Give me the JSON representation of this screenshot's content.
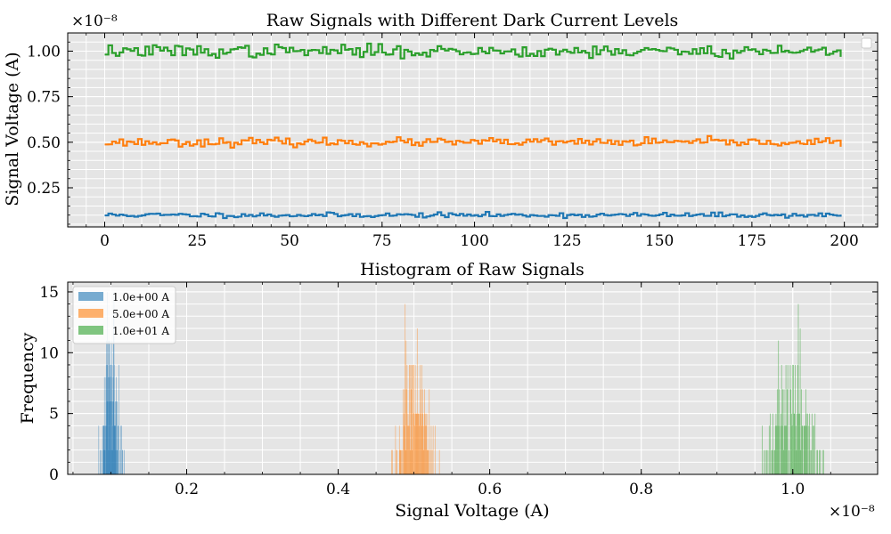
{
  "chart_data": [
    {
      "type": "line",
      "title": "Raw Signals with Different Dark Current Levels",
      "xlabel": "",
      "ylabel": "Signal Voltage (A)",
      "y_offset_label": "×10⁻⁸",
      "xlim": [
        -10,
        209
      ],
      "ylim": [
        0.035,
        1.1
      ],
      "y_scale_factor": 1e-08,
      "xticks": [
        0,
        25,
        50,
        75,
        100,
        125,
        150,
        175,
        200
      ],
      "xtick_labels": [
        "0",
        "25",
        "50",
        "75",
        "100",
        "125",
        "150",
        "175",
        "200"
      ],
      "yticks": [
        0.25,
        0.5,
        0.75,
        1.0
      ],
      "ytick_labels": [
        "0.25",
        "0.50",
        "0.75",
        "1.00"
      ],
      "grid": true,
      "legend": "top-right (empty)",
      "x": {
        "start": 0,
        "end": 199,
        "step": 1
      },
      "series": [
        {
          "color": "#1f77b4",
          "mean": 0.1,
          "std": 0.0065,
          "seed": 11
        },
        {
          "color": "#ff7f0e",
          "mean": 0.5,
          "std": 0.011,
          "seed": 23
        },
        {
          "color": "#2ca02c",
          "mean": 1.0,
          "std": 0.017,
          "seed": 37
        }
      ]
    },
    {
      "type": "histogram",
      "title": "Histogram of Raw Signals",
      "xlabel": "Signal Voltage (A)",
      "ylabel": "Frequency",
      "x_offset_label": "×10⁻⁸",
      "xlim": [
        0.043,
        1.112
      ],
      "ylim": [
        0,
        15.8
      ],
      "x_scale_factor": 1e-08,
      "xticks": [
        0.2,
        0.4,
        0.6,
        0.8,
        1.0
      ],
      "xtick_labels": [
        "0.2",
        "0.4",
        "0.6",
        "0.8",
        "1.0"
      ],
      "yticks": [
        0,
        5,
        10,
        15
      ],
      "ytick_labels": [
        "0",
        "5",
        "10",
        "15"
      ],
      "grid": true,
      "legend": "top-left",
      "series": [
        {
          "name": "1.0e+00 A",
          "color": "#1f77b4",
          "center": 0.1,
          "spread": 0.0065,
          "peak": 15,
          "seed": 11
        },
        {
          "name": "5.0e+00 A",
          "color": "#ff7f0e",
          "center": 0.5,
          "spread": 0.011,
          "peak": 14,
          "seed": 23
        },
        {
          "name": "1.0e+01 A",
          "color": "#2ca02c",
          "center": 1.0,
          "spread": 0.017,
          "peak": 14,
          "seed": 37
        }
      ]
    }
  ]
}
